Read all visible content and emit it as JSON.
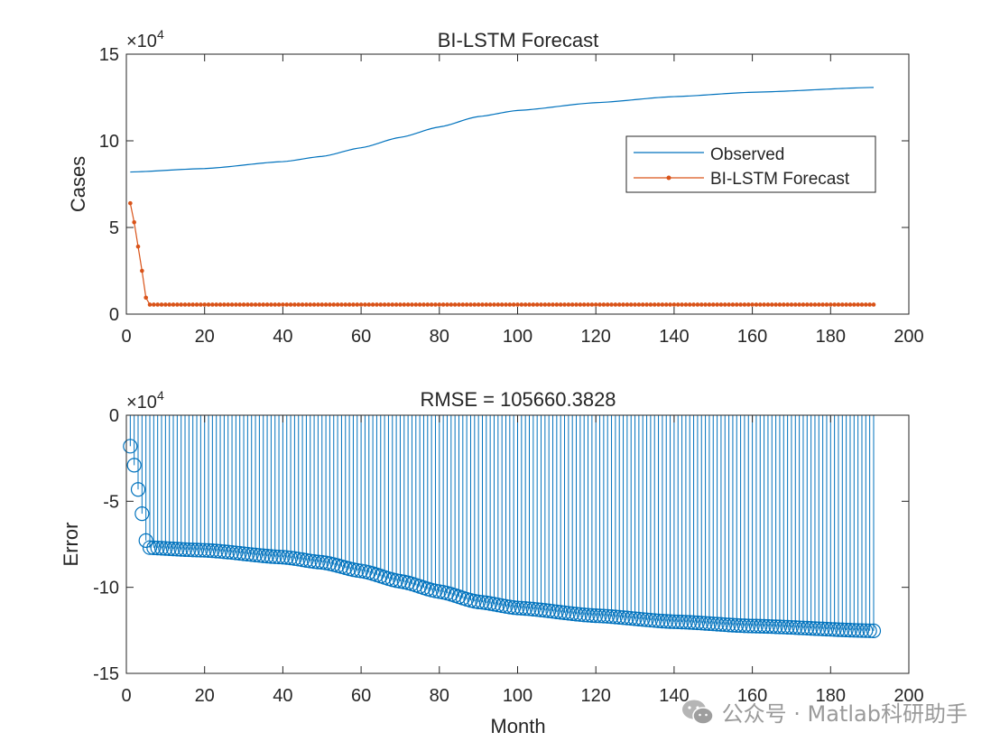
{
  "chart_data": [
    {
      "type": "line",
      "title": "BI-LSTM Forecast",
      "xlabel": "",
      "ylabel": "Cases",
      "y_exponent_label": "×10",
      "y_exponent": "4",
      "xlim": [
        0,
        200
      ],
      "ylim": [
        0,
        150000
      ],
      "x_ticks": [
        0,
        20,
        40,
        60,
        80,
        100,
        120,
        140,
        160,
        180,
        200
      ],
      "y_ticks": [
        0,
        50000,
        100000,
        150000
      ],
      "y_tick_labels": [
        "0",
        "5",
        "10",
        "15"
      ],
      "legend_position": "upper-right",
      "x_range": [
        1,
        191
      ],
      "series": [
        {
          "name": "Observed",
          "color": "#0072BD",
          "marker": "none",
          "knots": [
            [
              1,
              82000
            ],
            [
              20,
              84000
            ],
            [
              40,
              88000
            ],
            [
              50,
              91000
            ],
            [
              60,
              96000
            ],
            [
              70,
              102000
            ],
            [
              80,
              108000
            ],
            [
              90,
              114000
            ],
            [
              100,
              117500
            ],
            [
              120,
              122000
            ],
            [
              140,
              125500
            ],
            [
              160,
              128000
            ],
            [
              191,
              130800
            ]
          ]
        },
        {
          "name": "BI-LSTM Forecast",
          "color": "#D95319",
          "marker": "dot",
          "head_values": [
            64000,
            53000,
            39000,
            25000,
            9500
          ],
          "tail_value": 5500
        }
      ]
    },
    {
      "type": "stem",
      "title": "RMSE = 105660.3828",
      "xlabel": "Month",
      "ylabel": "Error",
      "y_exponent_label": "×10",
      "y_exponent": "4",
      "xlim": [
        0,
        200
      ],
      "ylim": [
        -150000,
        0
      ],
      "x_ticks": [
        0,
        20,
        40,
        60,
        80,
        100,
        120,
        140,
        160,
        180,
        200
      ],
      "y_ticks": [
        0,
        -50000,
        -100000,
        -150000
      ],
      "y_tick_labels": [
        "0",
        "-5",
        "-10",
        "-15"
      ],
      "series": [
        {
          "name": "",
          "color": "#0072BD",
          "marker": "circle",
          "definition": "BI-LSTM Forecast minus Observed"
        }
      ]
    }
  ],
  "watermark": {
    "text": "公众号 · Matlab科研助手",
    "icon": "wechat-icon"
  }
}
